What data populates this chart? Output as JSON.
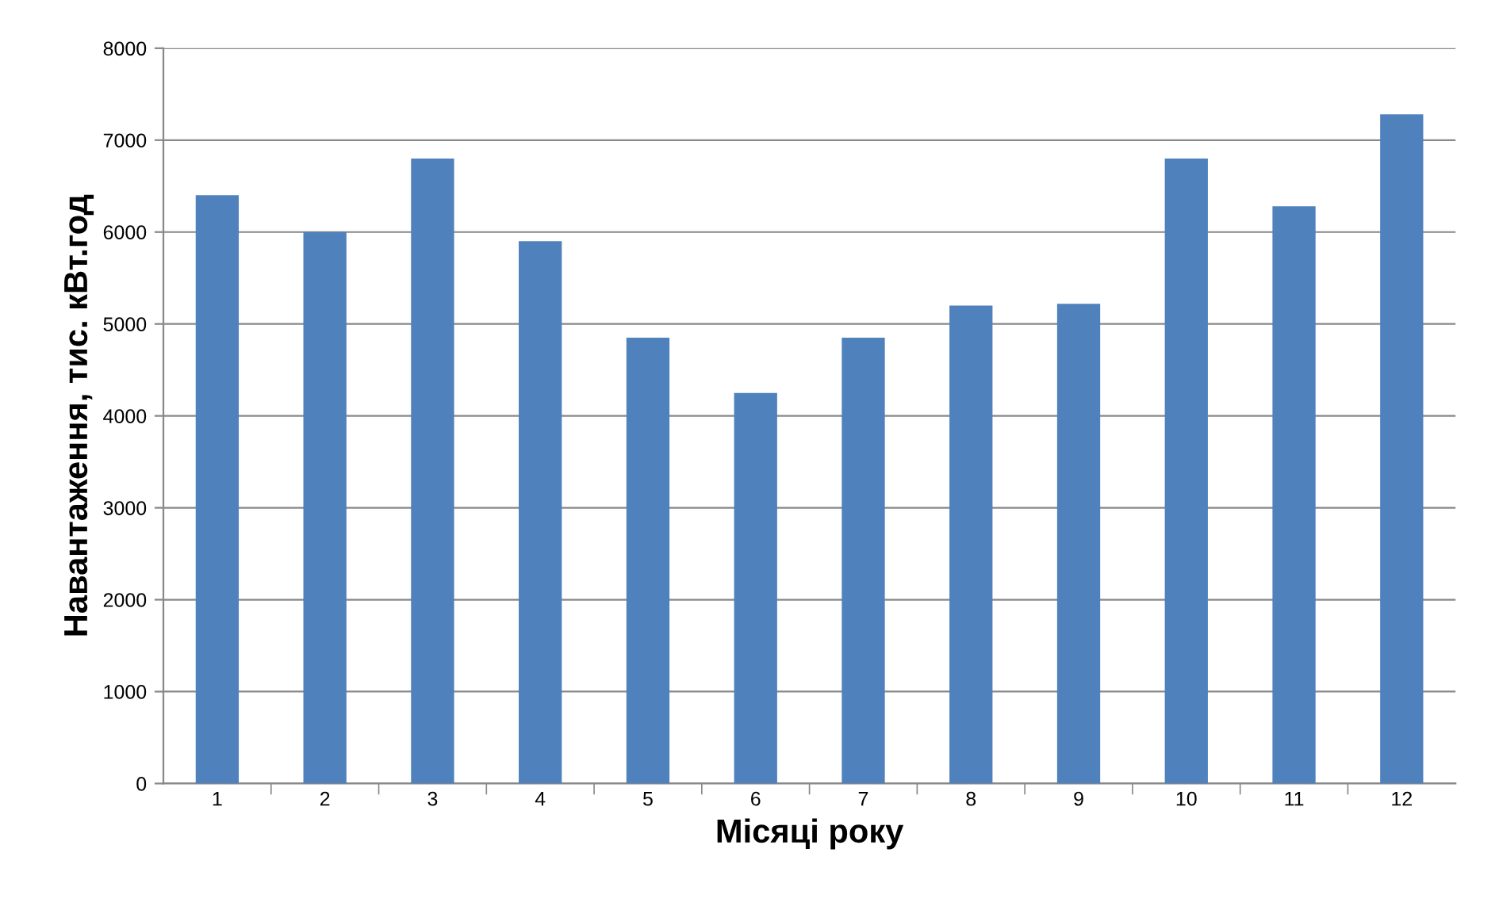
{
  "chart_data": {
    "type": "bar",
    "xlabel": "Місяці року",
    "ylabel": "Навантаження, тис. кВт.год",
    "categories": [
      "1",
      "2",
      "3",
      "4",
      "5",
      "6",
      "7",
      "8",
      "9",
      "10",
      "11",
      "12"
    ],
    "values": [
      6400,
      6000,
      6800,
      5900,
      4850,
      4250,
      4850,
      5200,
      5220,
      6800,
      6280,
      7280
    ],
    "color": "#4f81bd",
    "ylim": [
      0,
      8000
    ],
    "yticks": [
      0,
      1000,
      2000,
      3000,
      4000,
      5000,
      6000,
      7000,
      8000
    ],
    "grid": "y",
    "legend": false
  }
}
